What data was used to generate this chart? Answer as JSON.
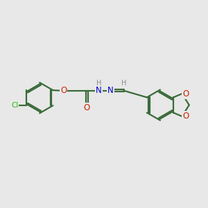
{
  "bg_color": "#e8e8e8",
  "bond_color": "#3a6b3a",
  "bond_width": 1.6,
  "atom_colors": {
    "Cl": "#22bb00",
    "O": "#cc2200",
    "N": "#0000cc",
    "H": "#888888",
    "C": "#3a6b3a"
  },
  "figsize": [
    3.0,
    3.0
  ],
  "dpi": 100
}
